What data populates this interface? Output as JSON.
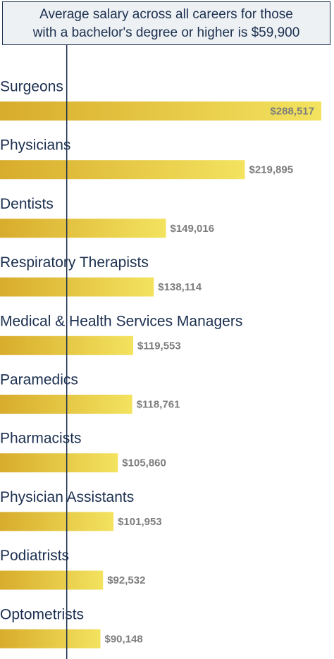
{
  "reference_note": {
    "line1": "Average salary across all careers for those",
    "line2": "with a bachelor's degree or higher is $59,900"
  },
  "colors": {
    "bar_start": "#d8ac2c",
    "bar_end": "#f3e35f",
    "label_text": "#1b2f4f",
    "value_text": "#7d7d7d",
    "ref_line": "#1b2f4f",
    "box_bg": "#eef1f4"
  },
  "chart_data": {
    "type": "bar",
    "orientation": "horizontal",
    "categories": [
      "Surgeons",
      "Physicians",
      "Dentists",
      "Respiratory Therapists",
      "Medical & Health Services Managers",
      "Paramedics",
      "Pharmacists",
      "Physician Assistants",
      "Podiatrists",
      "Optometrists"
    ],
    "values": [
      288517,
      219895,
      149016,
      138114,
      119553,
      118761,
      105860,
      101953,
      92532,
      90148
    ],
    "value_labels": [
      "$288,517",
      "$219,895",
      "$149,016",
      "$138,114",
      "$119,553",
      "$118,761",
      "$105,860",
      "$101,953",
      "$92,532",
      "$90,148"
    ],
    "reference_value": 59900,
    "xlim": [
      0,
      288517
    ],
    "grid": false,
    "legend": "none"
  }
}
